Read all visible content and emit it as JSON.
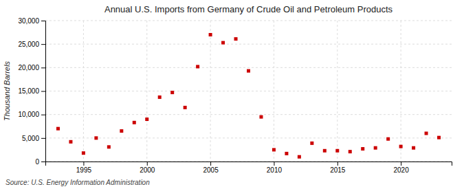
{
  "chart_data": {
    "type": "scatter",
    "title": "Annual U.S. Imports from Germany of Crude Oil and Petroleum Products",
    "ylabel": "Thousand Barrels",
    "source": "Source: U.S. Energy Information Administration",
    "x": [
      1993,
      1994,
      1995,
      1996,
      1997,
      1998,
      1999,
      2000,
      2001,
      2002,
      2003,
      2004,
      2005,
      2006,
      2007,
      2008,
      2009,
      2010,
      2011,
      2012,
      2013,
      2014,
      2015,
      2016,
      2017,
      2018,
      2019,
      2020,
      2021,
      2022,
      2023
    ],
    "values": [
      7000,
      4200,
      1800,
      5000,
      3100,
      6500,
      8300,
      9000,
      13700,
      14700,
      11500,
      20200,
      27000,
      25300,
      26100,
      19300,
      9500,
      2500,
      1700,
      1000,
      3900,
      2300,
      2300,
      2100,
      2700,
      2900,
      4800,
      3200,
      2900,
      6000,
      5100
    ],
    "color": "#cc0000",
    "marker": "square",
    "xlim": [
      1992,
      2024
    ],
    "ylim": [
      0,
      30000
    ],
    "xticks": [
      1995,
      2000,
      2005,
      2010,
      2015,
      2020
    ],
    "yticks": [
      0,
      {
        "value": 5000,
        "label": "5,000"
      },
      {
        "value": 10000,
        "label": "10,000"
      },
      {
        "value": 15000,
        "label": "15,000"
      },
      {
        "value": 20000,
        "label": "20,000"
      },
      {
        "value": 25000,
        "label": "25,000"
      },
      {
        "value": 30000,
        "label": "30,000"
      }
    ],
    "grid": true
  }
}
